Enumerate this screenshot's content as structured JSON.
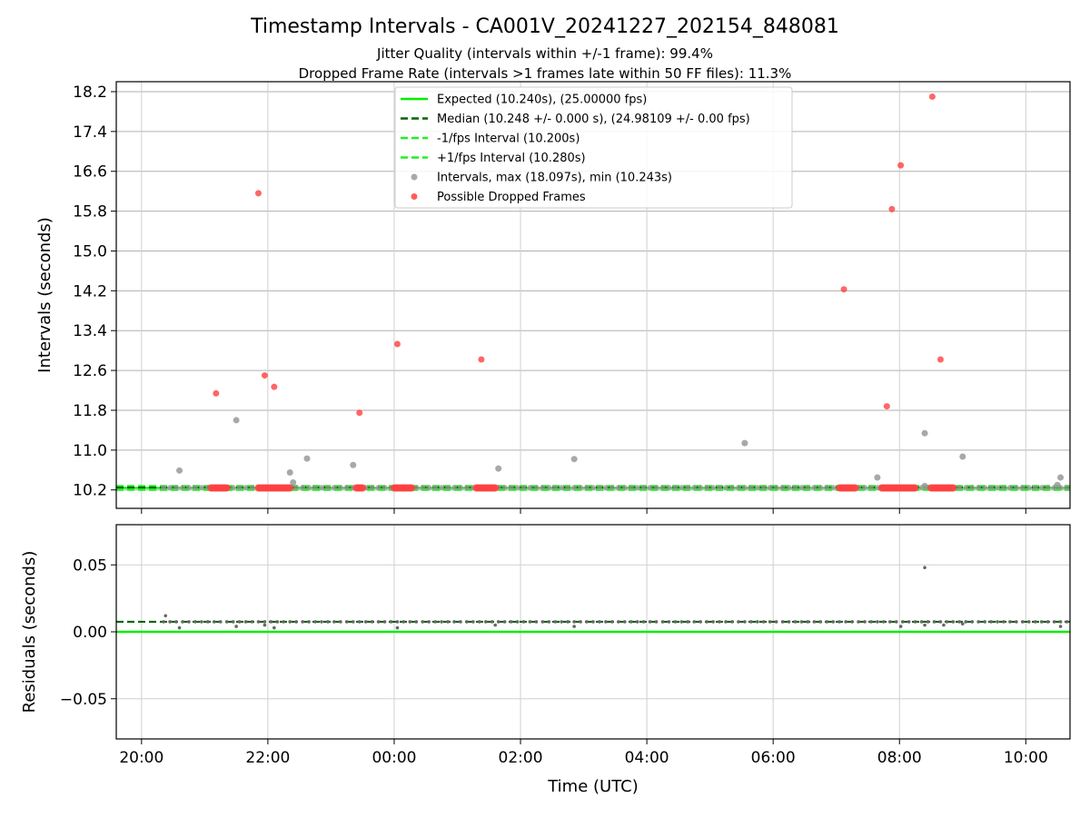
{
  "title": "Timestamp Intervals - CA001V_20241227_202154_848081",
  "subtitle_1": "Jitter Quality (intervals within +/-1 frame): 99.4%",
  "subtitle_2": "Dropped Frame Rate (intervals >1 frames late within 50 FF files): 11.3%",
  "colors": {
    "expected": "#00ee00",
    "median": "#006400",
    "interval_lines": "#22ee22",
    "intervals": "#999999",
    "dropped": "#ff4040",
    "residual_points": "#666666"
  },
  "chart_data": [
    {
      "type": "scatter",
      "ylabel": "Intervals (seconds)",
      "xlim_hours": [
        19.6,
        34.7
      ],
      "ylim": [
        9.83,
        18.4
      ],
      "yticks": [
        10.2,
        11.0,
        11.8,
        12.6,
        13.4,
        14.2,
        15.0,
        15.8,
        16.6,
        17.4,
        18.2
      ],
      "ytick_labels": [
        "10.2",
        "11.0",
        "11.8",
        "12.6",
        "13.4",
        "14.2",
        "15.0",
        "15.8",
        "16.6",
        "17.4",
        "18.2"
      ],
      "xtick_hours": [
        20,
        22,
        24,
        26,
        28,
        30,
        32,
        34
      ],
      "grid": true,
      "legend_position": "top-center",
      "legend": [
        {
          "label": "Expected (10.240s), (25.00000 fps)",
          "style": "solid",
          "color": "#00ee00"
        },
        {
          "label": "Median (10.248 +/- 0.000 s), (24.98109 +/- 0.00 fps)",
          "style": "dashed",
          "color": "#006400"
        },
        {
          "label": "-1/fps Interval (10.200s)",
          "style": "dashed",
          "color": "#22ee22"
        },
        {
          "label": "+1/fps Interval (10.280s)",
          "style": "dashed",
          "color": "#22ee22"
        },
        {
          "label": "Intervals, max (18.097s), min (10.243s)",
          "style": "marker",
          "color": "#999999"
        },
        {
          "label": "Possible Dropped Frames",
          "style": "marker",
          "color": "#ff4040"
        }
      ],
      "reference_lines": {
        "expected": 10.24,
        "median": 10.248,
        "minus_one_frame": 10.2,
        "plus_one_frame": 10.28
      },
      "series": [
        {
          "name": "Intervals, max (18.097s), min (10.243s)",
          "points": [
            [
              20.6,
              10.59
            ],
            [
              21.5,
              11.6
            ],
            [
              22.35,
              10.55
            ],
            [
              22.62,
              10.83
            ],
            [
              23.35,
              10.7
            ],
            [
              25.65,
              10.63
            ],
            [
              26.85,
              10.82
            ],
            [
              29.55,
              11.14
            ],
            [
              31.65,
              10.45
            ],
            [
              32.4,
              11.34
            ],
            [
              32.4,
              10.28
            ],
            [
              33.0,
              10.87
            ],
            [
              34.5,
              10.3
            ],
            [
              34.55,
              10.45
            ],
            [
              22.4,
              10.35
            ]
          ],
          "baseline_range_hours": [
            20.35,
            34.7
          ]
        },
        {
          "name": "Possible Dropped Frames",
          "points": [
            [
              21.18,
              12.14
            ],
            [
              21.85,
              16.16
            ],
            [
              21.95,
              12.5
            ],
            [
              22.1,
              12.27
            ],
            [
              23.45,
              11.75
            ],
            [
              24.05,
              13.13
            ],
            [
              25.38,
              12.82
            ],
            [
              31.12,
              14.23
            ],
            [
              31.8,
              11.88
            ],
            [
              31.88,
              15.84
            ],
            [
              32.02,
              16.72
            ],
            [
              32.52,
              18.1
            ],
            [
              32.65,
              12.82
            ]
          ],
          "dense_clusters_hours": [
            [
              21.1,
              21.35
            ],
            [
              21.85,
              22.35
            ],
            [
              23.4,
              23.52
            ],
            [
              24.0,
              24.28
            ],
            [
              25.3,
              25.6
            ],
            [
              31.05,
              31.32
            ],
            [
              31.72,
              32.25
            ],
            [
              32.5,
              32.85
            ]
          ],
          "cluster_value": 10.24
        }
      ]
    },
    {
      "type": "scatter",
      "ylabel": "Residuals (seconds)",
      "xlabel": "Time (UTC)",
      "xlim_hours": [
        19.6,
        34.7
      ],
      "ylim": [
        -0.08,
        0.08
      ],
      "yticks": [
        0.05,
        0.0,
        -0.05
      ],
      "ytick_labels": [
        "0.05",
        "0.00",
        "−0.05"
      ],
      "xtick_hours": [
        20,
        22,
        24,
        26,
        28,
        30,
        32,
        34
      ],
      "xtick_labels": [
        "20:00",
        "22:00",
        "00:00",
        "02:00",
        "04:00",
        "06:00",
        "08:00",
        "10:00"
      ],
      "grid": true,
      "reference_lines": {
        "expected": 0.0,
        "median": 0.0075
      },
      "residual_outliers": [
        [
          20.38,
          0.012
        ],
        [
          20.6,
          0.003
        ],
        [
          21.5,
          0.004
        ],
        [
          21.95,
          0.005
        ],
        [
          22.1,
          0.003
        ],
        [
          24.05,
          0.003
        ],
        [
          25.6,
          0.005
        ],
        [
          26.85,
          0.004
        ],
        [
          32.02,
          0.004
        ],
        [
          32.4,
          0.048
        ],
        [
          32.4,
          0.005
        ],
        [
          32.7,
          0.005
        ],
        [
          33.0,
          0.006
        ],
        [
          34.55,
          0.004
        ]
      ],
      "residual_baseline": 0.0075
    }
  ]
}
